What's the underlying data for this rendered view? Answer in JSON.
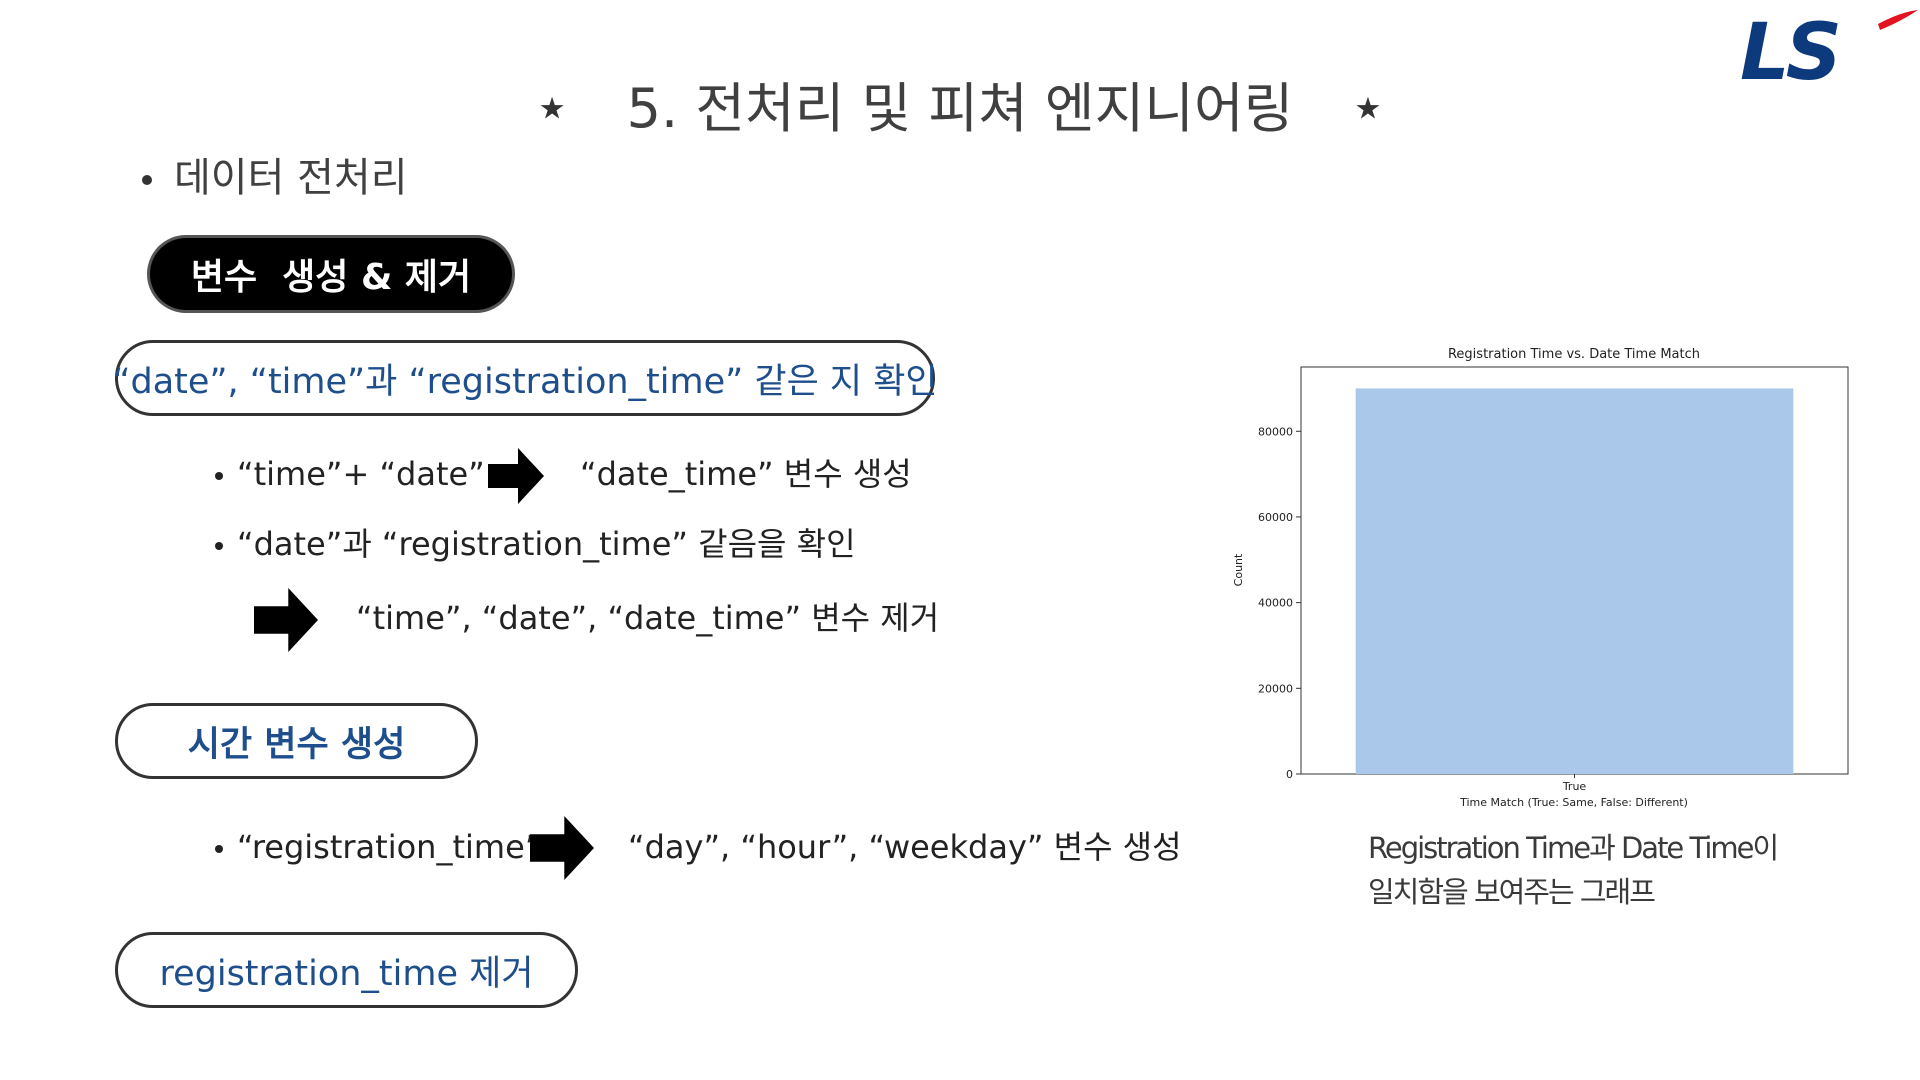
{
  "title": {
    "star_left": "★",
    "text": "5. 전처리 및 피쳐 엔지니어링",
    "star_right": "★"
  },
  "logo": {
    "text": "LS",
    "colors": {
      "primary": "#0c3a7d",
      "accent": "#e3141f"
    }
  },
  "section_heading": "데이터 전처리",
  "pill_create_remove": "변수  생성 & 제거",
  "pill_check": "“date”, “time”과 “registration_time” 같은 지 확인",
  "check_items": {
    "item1_left": "“time”+ “date”",
    "item1_right": "“date_time” 변수 생성",
    "item2": "“date”과 “registration_time” 같음을 확인",
    "item3": "“time”, “date”, “date_time” 변수 제거"
  },
  "pill_time_vars": "시간 변수 생성",
  "time_items": {
    "left": "“registration_time”",
    "right": "“day”, “hour”, “weekday” 변수 생성"
  },
  "pill_remove": "registration_time 제거",
  "chart_data": {
    "type": "bar",
    "title": "Registration Time vs. Date Time Match",
    "xlabel": "Time Match (True: Same, False: Different)",
    "ylabel": "Count",
    "categories": [
      "True"
    ],
    "values": [
      90000
    ],
    "ylim": [
      0,
      95000
    ],
    "yticks": [
      0,
      20000,
      40000,
      60000,
      80000
    ],
    "bar_color": "#aac8ea",
    "grid": false
  },
  "caption": {
    "line1": "Registration Time과 Date Time이",
    "line2": "일치함을 보여주는 그래프"
  },
  "colors": {
    "accent_blue": "#1e4f8c"
  },
  "icons": {
    "arrow": "right-arrow-icon"
  }
}
